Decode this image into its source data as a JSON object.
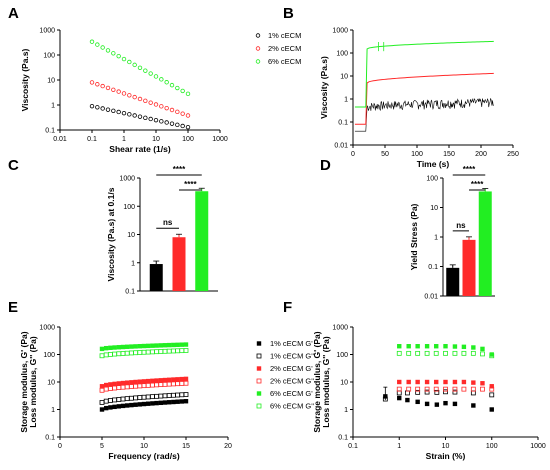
{
  "panel_letters": [
    "A",
    "B",
    "C",
    "D",
    "E",
    "F"
  ],
  "colors": {
    "c1": "#000000",
    "c2": "#ff2a2a",
    "c3": "#22ee22"
  },
  "chart_data": [
    {
      "id": "A",
      "type": "scatter",
      "x_scale": "log",
      "y_scale": "log",
      "xlabel": "Shear rate (1/s)",
      "ylabel": "Viscosity (Pa.s)",
      "xlim": [
        0.01,
        1000
      ],
      "ylim": [
        0.1,
        1000
      ],
      "x_ticks": [
        "0.01",
        "0.1",
        "1",
        "10",
        "100",
        "1000"
      ],
      "y_ticks": [
        "0.1",
        "1",
        "10",
        "100",
        "1000"
      ],
      "legend": [
        "1% cECM",
        "2% cECM",
        "6% cECM"
      ],
      "series": [
        {
          "name": "1% cECM",
          "x_from": 0.1,
          "x_to": 100,
          "y_from": 0.9,
          "y_to": 0.13,
          "points": 19
        },
        {
          "name": "2% cECM",
          "x_from": 0.1,
          "x_to": 100,
          "y_from": 8,
          "y_to": 0.38,
          "points": 19
        },
        {
          "name": "6% cECM",
          "x_from": 0.1,
          "x_to": 100,
          "y_from": 340,
          "y_to": 2.8,
          "points": 19
        }
      ]
    },
    {
      "id": "B",
      "type": "line",
      "y_scale": "log",
      "xlabel": "Time (s)",
      "ylabel": "Viscosity (Pa.s)",
      "xlim": [
        0,
        250
      ],
      "ylim": [
        0.01,
        1000
      ],
      "x_ticks": [
        "0",
        "50",
        "100",
        "150",
        "200",
        "250"
      ],
      "y_ticks": [
        "0.01",
        "0.1",
        "1",
        "10",
        "100",
        "1000"
      ],
      "series": [
        {
          "name": "1% cECM",
          "start": 0.45,
          "end": 0.75,
          "noisy": true
        },
        {
          "name": "2% cECM",
          "start": 5,
          "end": 13
        },
        {
          "name": "6% cECM",
          "start": 150,
          "end": 320
        }
      ]
    },
    {
      "id": "C",
      "type": "bar",
      "y_scale": "log",
      "ylabel": "Viscosity (Pa.s) at 0.1/s",
      "ylim": [
        0.1,
        1000
      ],
      "y_ticks": [
        "0.1",
        "1",
        "10",
        "100",
        "1000"
      ],
      "values": [
        0.9,
        8,
        340
      ],
      "significance": [
        {
          "from": 0,
          "to": 1,
          "label": "ns"
        },
        {
          "from": 1,
          "to": 2,
          "label": "****"
        },
        {
          "from": 0,
          "to": 2,
          "label": "****"
        }
      ]
    },
    {
      "id": "D",
      "type": "bar",
      "y_scale": "log",
      "ylabel": "Yield Stress (Pa)",
      "ylim": [
        0.01,
        100
      ],
      "y_ticks": [
        "0.01",
        "0.1",
        "1",
        "10",
        "100"
      ],
      "values": [
        0.09,
        0.8,
        35
      ],
      "significance": [
        {
          "from": 0,
          "to": 1,
          "label": "ns"
        },
        {
          "from": 1,
          "to": 2,
          "label": "****"
        },
        {
          "from": 0,
          "to": 2,
          "label": "****"
        }
      ]
    },
    {
      "id": "E",
      "type": "scatter",
      "y_scale": "log",
      "xlabel": "Frequency (rad/s)",
      "ylabel": [
        "Storage modulus, G' (Pa)",
        "Loss modulus, G'' (Pa)"
      ],
      "xlim": [
        0,
        20
      ],
      "ylim": [
        0.1,
        1000
      ],
      "x_ticks": [
        "0",
        "5",
        "10",
        "15",
        "20"
      ],
      "y_ticks": [
        "0.1",
        "1",
        "10",
        "100",
        "1000"
      ],
      "legend": [
        "1% cECM G'",
        "1% cECM G''",
        "2% cECM G'",
        "2% cECM G''",
        "6% cECM G'",
        "6% cECM G''"
      ],
      "series": [
        {
          "name": "1% cECM G'",
          "x_from": 5,
          "x_to": 15,
          "y_from": 1.0,
          "y_to": 2.0,
          "points": 21
        },
        {
          "name": "1% cECM G''",
          "x_from": 5,
          "x_to": 15,
          "y_from": 1.8,
          "y_to": 3.5,
          "points": 21
        },
        {
          "name": "2% cECM G'",
          "x_from": 5,
          "x_to": 15,
          "y_from": 7,
          "y_to": 13,
          "points": 21
        },
        {
          "name": "2% cECM G''",
          "x_from": 5,
          "x_to": 15,
          "y_from": 5,
          "y_to": 9,
          "points": 21
        },
        {
          "name": "6% cECM G'",
          "x_from": 5,
          "x_to": 15,
          "y_from": 160,
          "y_to": 230,
          "points": 21
        },
        {
          "name": "6% cECM G''",
          "x_from": 5,
          "x_to": 15,
          "y_from": 90,
          "y_to": 140,
          "points": 21
        }
      ]
    },
    {
      "id": "F",
      "type": "scatter",
      "x_scale": "log",
      "y_scale": "log",
      "xlabel": "Strain (%)",
      "ylabel": [
        "Storage modulus, G' (Pa)",
        "Loss modulus, G'' (Pa)"
      ],
      "xlim": [
        0.1,
        1000
      ],
      "ylim": [
        0.1,
        1000
      ],
      "x_ticks": [
        "0.1",
        "1",
        "10",
        "100",
        "1000"
      ],
      "y_ticks": [
        "0.1",
        "1",
        "10",
        "100",
        "1000"
      ],
      "series": [
        {
          "name": "1% cECM G'",
          "x": [
            0.5,
            1,
            1.5,
            2.5,
            4,
            6.5,
            10,
            16,
            40,
            100
          ],
          "y": [
            3,
            2.6,
            2.2,
            1.9,
            1.6,
            1.5,
            1.7,
            1.6,
            1.4,
            1.0
          ]
        },
        {
          "name": "1% cECM G''",
          "x": [
            0.5,
            1,
            1.5,
            2.5,
            4,
            6.5,
            10,
            16,
            40,
            100
          ],
          "y": [
            2.4,
            4,
            4,
            4.2,
            4.3,
            4.2,
            4.4,
            4.3,
            4.0,
            3.4
          ]
        },
        {
          "name": "2% cECM G'",
          "x": [
            1,
            1.6,
            2.5,
            4,
            6.3,
            10,
            16,
            25,
            40,
            63,
            100
          ],
          "y": [
            10,
            10,
            10,
            10,
            10,
            10,
            10,
            10,
            9.5,
            9,
            7
          ]
        },
        {
          "name": "2% cECM G''",
          "x": [
            1,
            1.6,
            2.5,
            4,
            6.3,
            10,
            16,
            25,
            40,
            63,
            100
          ],
          "y": [
            5.5,
            5.5,
            5.5,
            5.5,
            5.5,
            5.5,
            5.5,
            5.5,
            5.5,
            5.5,
            5.5
          ]
        },
        {
          "name": "6% cECM G'",
          "x": [
            1,
            1.6,
            2.5,
            4,
            6.3,
            10,
            16,
            25,
            40,
            63,
            100
          ],
          "y": [
            200,
            200,
            200,
            200,
            200,
            200,
            195,
            190,
            180,
            160,
            100
          ]
        },
        {
          "name": "6% cECM G''",
          "x": [
            1,
            1.6,
            2.5,
            4,
            6.3,
            10,
            16,
            25,
            40,
            63,
            100
          ],
          "y": [
            110,
            110,
            110,
            110,
            110,
            110,
            110,
            110,
            110,
            105,
            90
          ]
        }
      ]
    }
  ]
}
